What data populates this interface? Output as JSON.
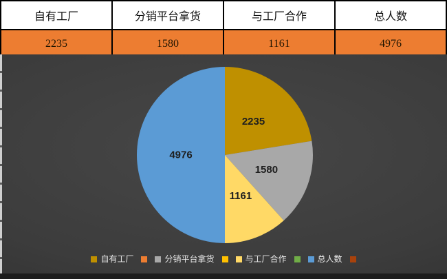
{
  "table": {
    "headers": [
      "自有工厂",
      "分销平台拿货",
      "与工厂合作",
      "总人数"
    ],
    "values": [
      "2235",
      "1580",
      "1161",
      "4976"
    ]
  },
  "chart_data": {
    "type": "pie",
    "title": "",
    "categories": [
      "自有工厂",
      "分销平台拿货",
      "与工厂合作",
      "总人数"
    ],
    "values": [
      2235,
      1580,
      1161,
      4976
    ],
    "data_labels": [
      "2235",
      "1580",
      "1161",
      "4976"
    ],
    "slice_colors": [
      "#BF9000",
      "#A8A8A8",
      "#FFD966",
      "#5B9BD5"
    ],
    "start_angle_deg": 0,
    "direction": "clockwise",
    "legend_position": "bottom",
    "legend": [
      {
        "label": "自有工厂",
        "color": "#BF9000"
      },
      {
        "label": "",
        "color": "#ED7D31"
      },
      {
        "label": "分销平台拿货",
        "color": "#A8A8A8"
      },
      {
        "label": "",
        "color": "#FFC000"
      },
      {
        "label": "与工厂合作",
        "color": "#FFD966"
      },
      {
        "label": "",
        "color": "#70AD47"
      },
      {
        "label": "总人数",
        "color": "#5B9BD5"
      },
      {
        "label": "",
        "color": "#A8420C"
      }
    ]
  },
  "colors": {
    "table_value_row_bg": "#ED7D31",
    "table_border": "#000000",
    "chart_bg_center": "#474747",
    "chart_bg_edge": "#2B2B2B",
    "legend_text": "#E8E8E8",
    "slice_label_text": "#1E1E1E"
  }
}
